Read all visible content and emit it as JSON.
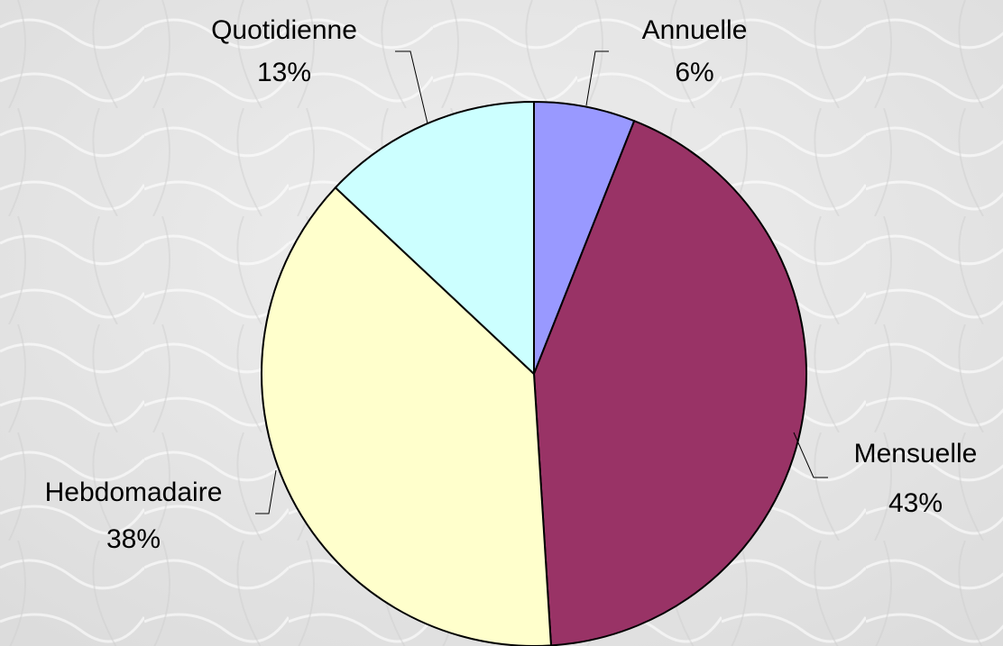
{
  "chart_data": {
    "type": "pie",
    "categories": [
      "Annuelle",
      "Mensuelle",
      "Hebdomadaire",
      "Quotidienne"
    ],
    "values": [
      6,
      43,
      38,
      13
    ],
    "value_labels": [
      "6%",
      "43%",
      "38%",
      "13%"
    ],
    "colors": [
      "#9999ff",
      "#993366",
      "#ffffcc",
      "#ccffff"
    ]
  }
}
